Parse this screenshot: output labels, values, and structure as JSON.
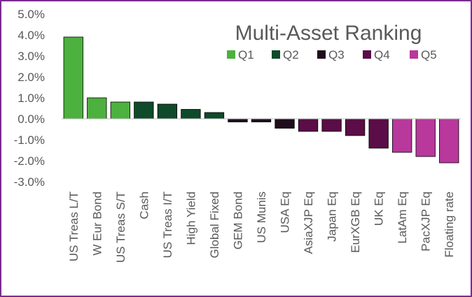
{
  "chart_data": {
    "type": "bar",
    "title": "Multi-Asset Ranking",
    "xlabel": "",
    "ylabel": "",
    "ylim": [
      -3.0,
      5.0
    ],
    "yticks": [
      "5.0%",
      "4.0%",
      "3.0%",
      "2.0%",
      "1.0%",
      "0.0%",
      "-1.0%",
      "-2.0%",
      "-3.0%"
    ],
    "grid": false,
    "legend_position": "top-right",
    "legend": [
      {
        "label": "Q1",
        "color": "#4cb13e"
      },
      {
        "label": "Q2",
        "color": "#0f4a2a"
      },
      {
        "label": "Q3",
        "color": "#1f0d1c"
      },
      {
        "label": "Q4",
        "color": "#5a0d46"
      },
      {
        "label": "Q5",
        "color": "#b8389c"
      }
    ],
    "categories": [
      "US Treas L/T",
      "W Eur Bond",
      "US Treas S/T",
      "Cash",
      "US Treas I/T",
      "High Yield",
      "Global Fixed",
      "GEM Bond",
      "US Munis",
      "USA Eq",
      "AsiaXJP Eq",
      "Japan Eq",
      "EurXGB Eq",
      "UK Eq",
      "LatAm Eq",
      "PacXJP Eq",
      "Floating rate"
    ],
    "values": [
      3.9,
      1.0,
      0.8,
      0.8,
      0.7,
      0.45,
      0.3,
      -0.15,
      -0.15,
      -0.45,
      -0.6,
      -0.6,
      -0.8,
      -1.4,
      -1.6,
      -1.8,
      -2.1
    ],
    "quintile": [
      "Q1",
      "Q1",
      "Q1",
      "Q2",
      "Q2",
      "Q2",
      "Q2",
      "Q3",
      "Q3",
      "Q3",
      "Q4",
      "Q4",
      "Q4",
      "Q4",
      "Q5",
      "Q5",
      "Q5"
    ]
  }
}
